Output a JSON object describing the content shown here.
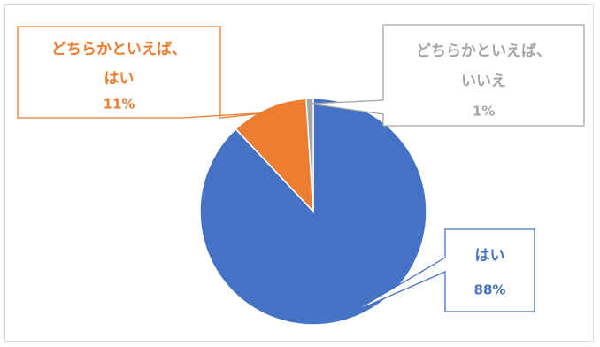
{
  "chart_data": {
    "type": "pie",
    "title": "",
    "legend": "none",
    "slices": [
      {
        "label": "はい",
        "value": 88,
        "value_label": "88%",
        "color": "#4472C4",
        "text_color": "#4472C4"
      },
      {
        "label_lines": [
          "どちらかといえば、",
          "はい"
        ],
        "value": 11,
        "value_label": "11%",
        "color": "#ED7D31",
        "text_color": "#ED7D31"
      },
      {
        "label_lines": [
          "どちらかといえば、",
          "いいえ"
        ],
        "value": 1,
        "value_label": "1%",
        "color": "#A5A5A5",
        "text_color": "#A5A5A5"
      }
    ]
  }
}
